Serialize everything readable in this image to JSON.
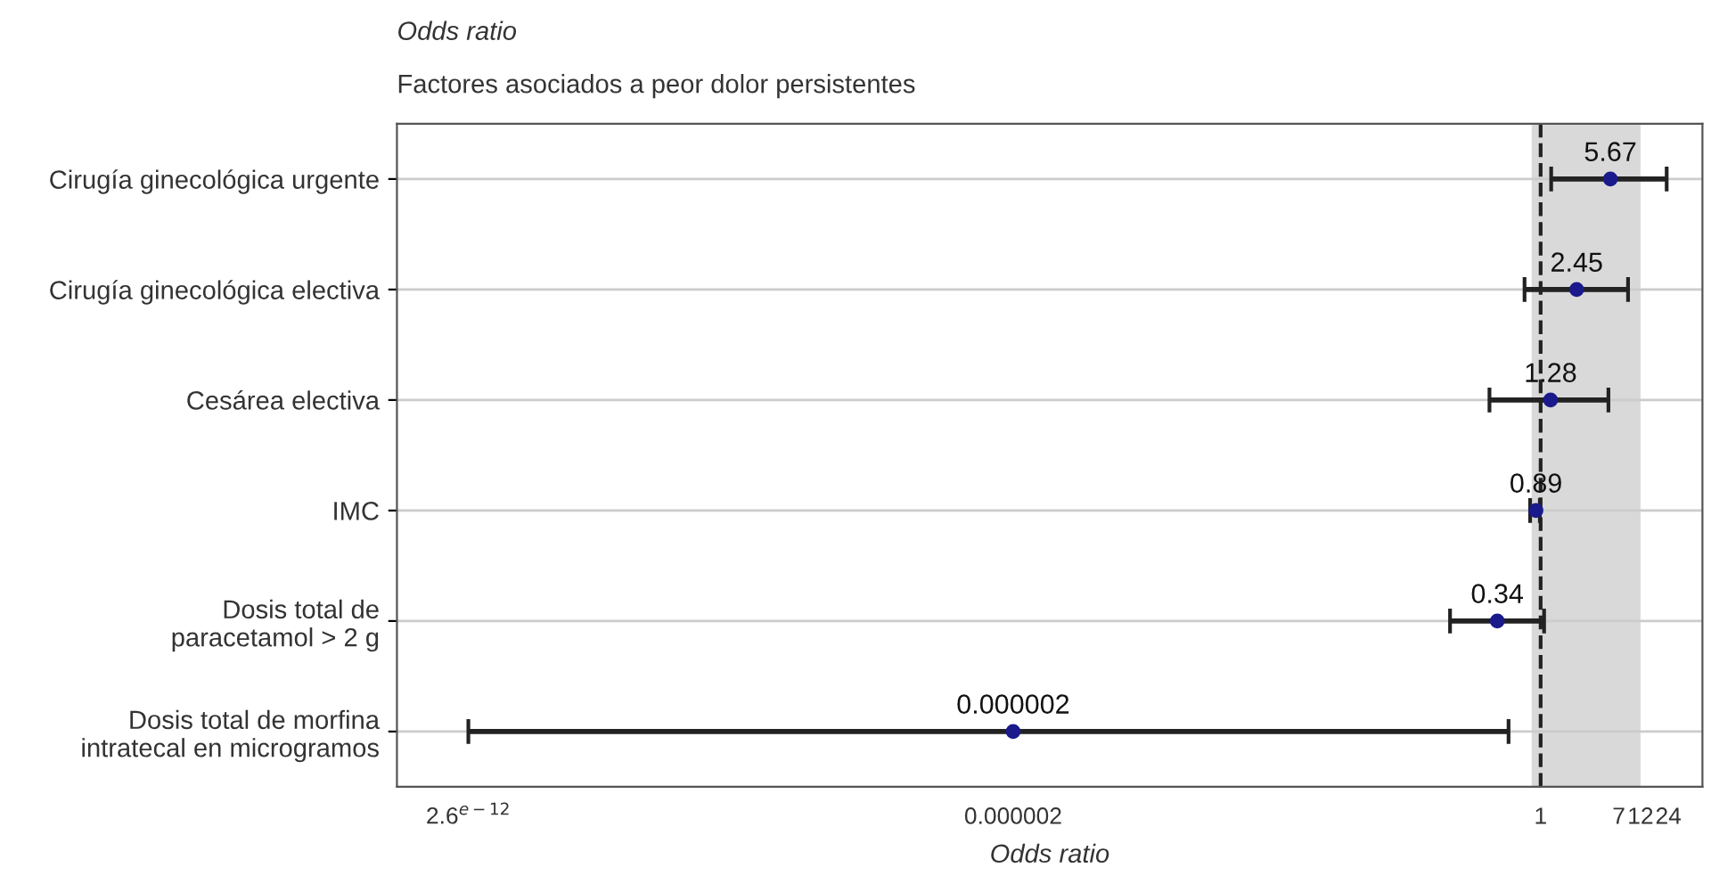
{
  "chart_data": {
    "type": "scatter",
    "title": "Odds ratio",
    "subtitle": "Factores asociados a peor dolor persistentes",
    "xlabel": "Odds ratio",
    "categories": [
      "Cirugía ginecológica urgente",
      "Cirugía ginecológica electiva",
      "Cesárea electiva",
      "IMC",
      "Dosis total de\nparacetamol > 2 g",
      "Dosis total de morfina\nintratecal en microgramos"
    ],
    "orientation": "horizontal",
    "series": [
      {
        "color": "#1a1a8c",
        "values": [
          5.67,
          2.45,
          1.28,
          0.89,
          0.34,
          2e-06
        ],
        "errors": [
          [
            1.3,
            23
          ],
          [
            0.67,
            8.8
          ],
          [
            0.28,
            5.4
          ],
          [
            0.77,
            0.98
          ],
          [
            0.105,
            1.09
          ],
          [
            2.6e-12,
            0.45
          ]
        ],
        "value_labels": [
          "5.67",
          "2.45",
          "1.28",
          "0.89",
          "0.34",
          "0.000002"
        ]
      }
    ],
    "log": "x",
    "xlim": [
      4.4e-13,
      56
    ],
    "xticks": [
      {
        "value": 2.6e-12,
        "label": "2.6$^{e−12}$"
      },
      {
        "value": 2e-06,
        "label": "0.000002"
      },
      1,
      7,
      12,
      24
    ],
    "ref_lines": [
      {
        "axis": "x",
        "value": 1,
        "label": null,
        "line_style": "dashed",
        "color": "#222222"
      }
    ],
    "bands": [
      {
        "axis": "x",
        "from": 0.8,
        "to": 12,
        "label": null,
        "color": "#d9d9d9"
      }
    ],
    "grid": "y",
    "marker": "circle"
  }
}
